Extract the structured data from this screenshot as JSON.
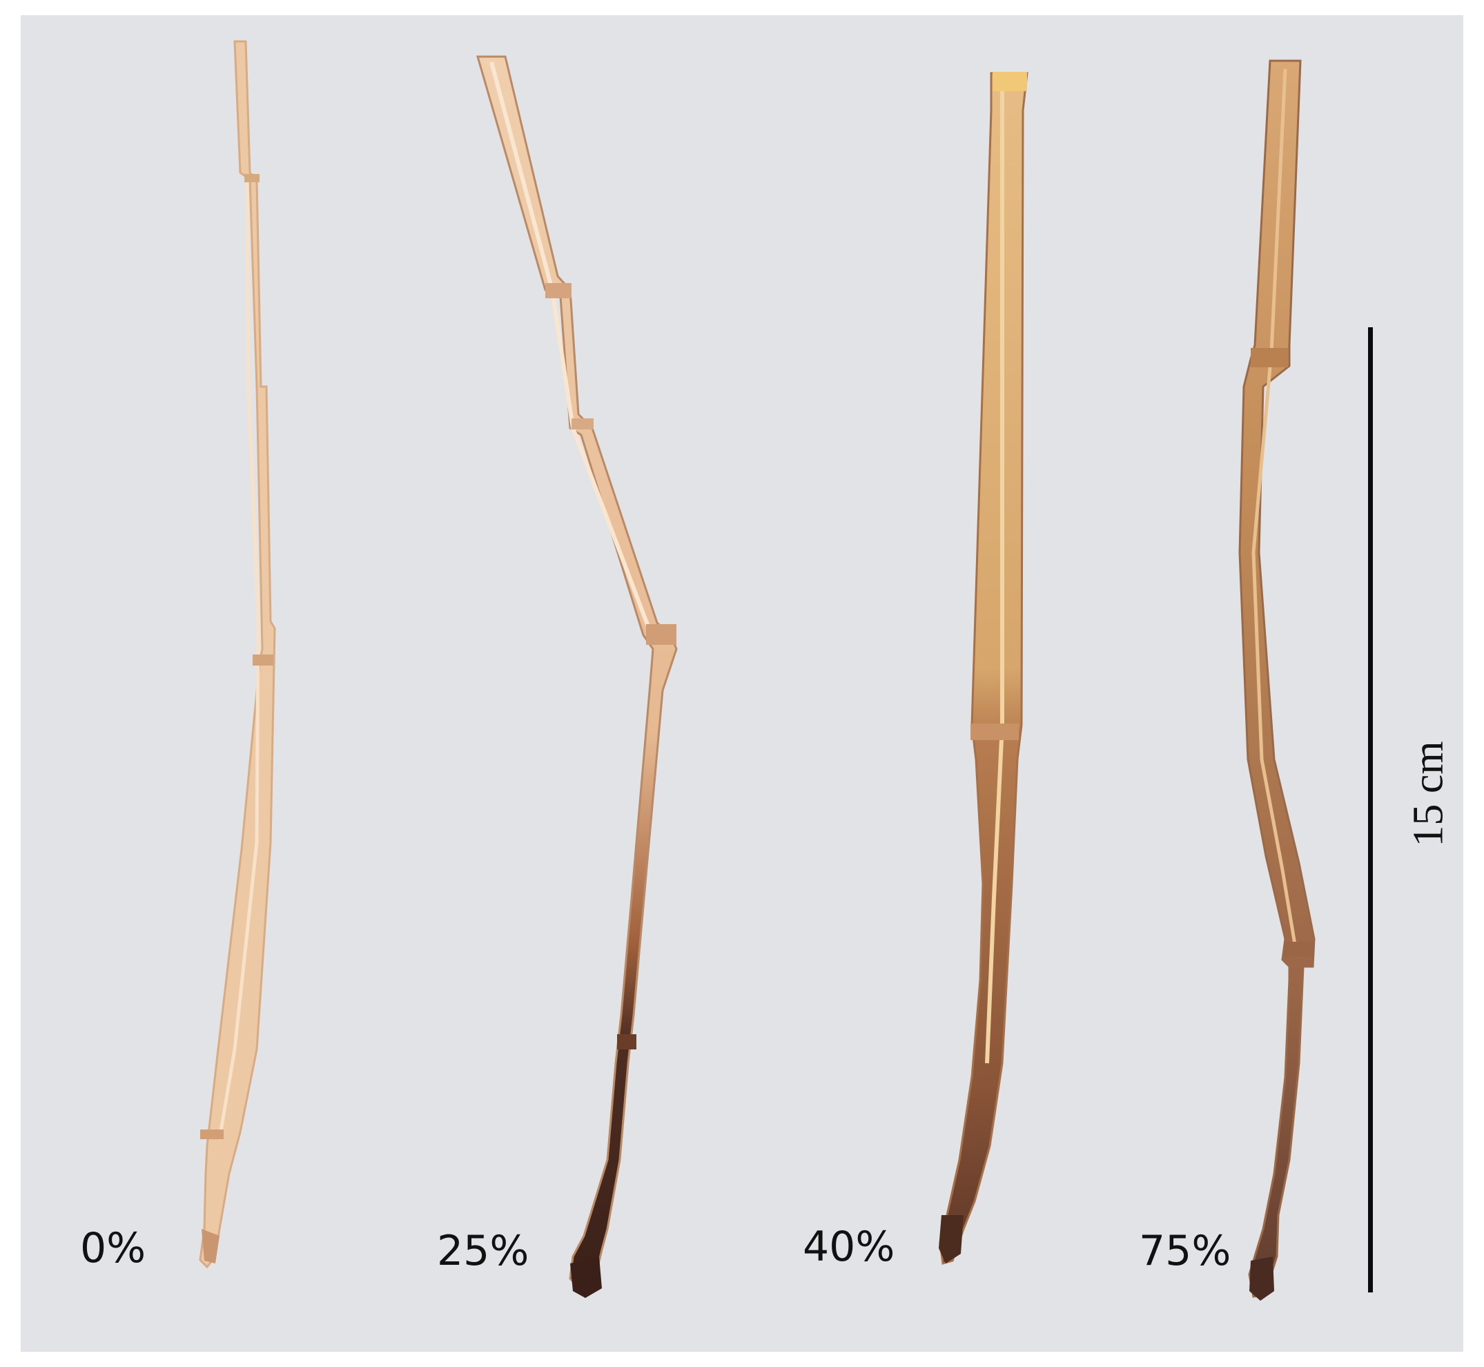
{
  "samples": [
    {
      "label": "0%",
      "stem_color": "#ecc8a4",
      "base_color": "#ecc8a4"
    },
    {
      "label": "25%",
      "stem_color": "#ecc6a2",
      "base_color": "#4e2d22"
    },
    {
      "label": "40%",
      "stem_color": "#dcac72",
      "base_color": "#7a4a33"
    },
    {
      "label": "75%",
      "stem_color": "#c9935e",
      "base_color": "#6f4434"
    }
  ],
  "scale_bar": {
    "label": "15 cm",
    "length_cm": 15
  },
  "background_color": "#e1e3e6"
}
